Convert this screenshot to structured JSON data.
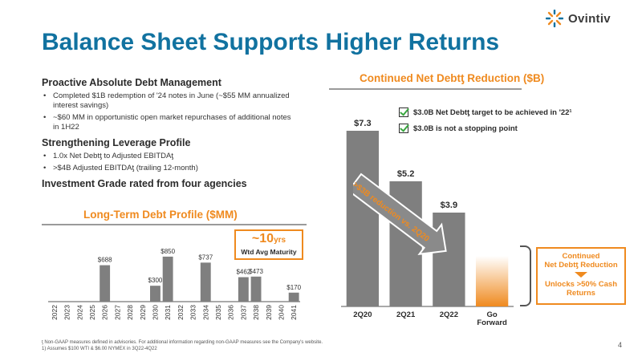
{
  "brand": {
    "logo_text": "Ovintiv",
    "accent": "#ef8a1f",
    "title_color": "#1172a0"
  },
  "title": "Balance Sheet Supports Higher Returns",
  "left": {
    "section1": {
      "heading": "Proactive Absolute Debt Management",
      "bullets": [
        "Completed $1B redemption of '24 notes in June (~$55 MM annualized interest savings)",
        "~$60 MM in opportunistic open market repurchases of additional notes in 1H22"
      ]
    },
    "section2": {
      "heading": "Strengthening Leverage Profile",
      "bullets": [
        "1.0x Net Debtƫ to Adjusted EBITDAƫ",
        ">$4B Adjusted EBITDAƫ (trailing 12-month)"
      ]
    },
    "investment_grade": "Investment Grade rated from four agencies"
  },
  "debt_panel": {
    "title": "Long-Term Debt Profile ($MM)",
    "callout_value": "~10",
    "callout_unit": "yrs",
    "callout_sub": "Wtd Avg Maturity"
  },
  "net_debt_panel": {
    "title": "Continued Net Debtƫ Reduction ($B)",
    "legend": [
      "$3.0B Net Debtƫ target to be achieved in '22¹",
      "$3.0B is not a stopping point"
    ],
    "arrow_text": ">$3B reduction vs. 2Q20",
    "box_line1": "Continued",
    "box_line2": "Net Debtƫ Reduction",
    "box_line3": "Unlocks >50% Cash",
    "box_line4": "Returns"
  },
  "footnotes": {
    "line1": "ƫ Non-GAAP measures defined in advisories.  For additional information regarding non-GAAP measures see the Company's website.",
    "line2": "1) Assumes $100 WTI & $6.00 NYMEX in 3Q22-4Q22"
  },
  "page_number": "4",
  "chart_data": [
    {
      "type": "bar",
      "title": "Long-Term Debt Profile ($MM)",
      "categories": [
        "2022",
        "2023",
        "2024",
        "2025",
        "2026",
        "2027",
        "2028",
        "2029",
        "2030",
        "2031",
        "2032",
        "2033",
        "2034",
        "2035",
        "2036",
        "2037",
        "2038",
        "2039",
        "2040",
        "2041"
      ],
      "series": [
        {
          "values": [
            0,
            0,
            0,
            0,
            688,
            0,
            0,
            0,
            300,
            850,
            0,
            0,
            737,
            0,
            0,
            462,
            473,
            0,
            0,
            170
          ],
          "labels": [
            "",
            "",
            "",
            "",
            "$688",
            "",
            "",
            "",
            "$300",
            "$850",
            "",
            "",
            "$737",
            "",
            "",
            "$462",
            "$473",
            "",
            "",
            "$170"
          ]
        }
      ],
      "ylim": [
        0,
        1000
      ],
      "grid": false,
      "bar_color": "#7f7f7f"
    },
    {
      "type": "bar",
      "title": "Continued Net Debtƫ Reduction ($B)",
      "categories": [
        "2Q20",
        "2Q21",
        "2Q22",
        "Go Forward"
      ],
      "series": [
        {
          "values": [
            7.3,
            5.2,
            3.9,
            2.1
          ],
          "labels": [
            "$7.3",
            "$5.2",
            "$3.9",
            ""
          ]
        }
      ],
      "ylim": [
        0,
        8
      ],
      "grid": false,
      "bar_color": "#7f7f7f",
      "highlight_color": "#ef8a1f"
    }
  ]
}
